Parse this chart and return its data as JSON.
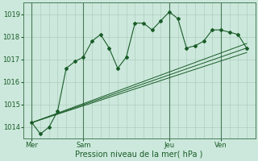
{
  "background_color": "#cce8dc",
  "plot_bg_color": "#cce8dc",
  "grid_color": "#a8c8b8",
  "line_color": "#1a5c28",
  "ylim": [
    1013.5,
    1019.5
  ],
  "yticks": [
    1014,
    1015,
    1016,
    1017,
    1018,
    1019
  ],
  "xlabel": "Pression niveau de la mer( hPa )",
  "day_labels": [
    "Mer",
    "Sam",
    "Jeu",
    "Ven"
  ],
  "day_positions": [
    0,
    6,
    16,
    22
  ],
  "xlim": [
    -1,
    26
  ],
  "series1_x": [
    0,
    1,
    2,
    3,
    4,
    5,
    6,
    7,
    8,
    9,
    10,
    11,
    12,
    13,
    14,
    15,
    16,
    17,
    18,
    19,
    20,
    21,
    22,
    23,
    24,
    25
  ],
  "series1_y": [
    1014.2,
    1013.7,
    1014.0,
    1014.7,
    1016.6,
    1016.9,
    1017.1,
    1017.8,
    1018.1,
    1017.5,
    1016.6,
    1017.1,
    1018.6,
    1018.6,
    1018.3,
    1018.7,
    1019.1,
    1018.8,
    1017.5,
    1017.6,
    1017.8,
    1018.3,
    1018.3,
    1018.2,
    1018.1,
    1017.5
  ],
  "series2_x": [
    0,
    25
  ],
  "series2_y": [
    1014.2,
    1017.3
  ],
  "series3_x": [
    0,
    25
  ],
  "series3_y": [
    1014.2,
    1017.5
  ],
  "series4_x": [
    0,
    25
  ],
  "series4_y": [
    1014.2,
    1017.7
  ],
  "vline_positions": [
    0,
    6,
    16,
    22
  ],
  "minor_xticks": [
    0,
    1,
    2,
    3,
    4,
    5,
    6,
    7,
    8,
    9,
    10,
    11,
    12,
    13,
    14,
    15,
    16,
    17,
    18,
    19,
    20,
    21,
    22,
    23,
    24,
    25
  ],
  "figsize": [
    3.2,
    2.0
  ],
  "dpi": 100
}
